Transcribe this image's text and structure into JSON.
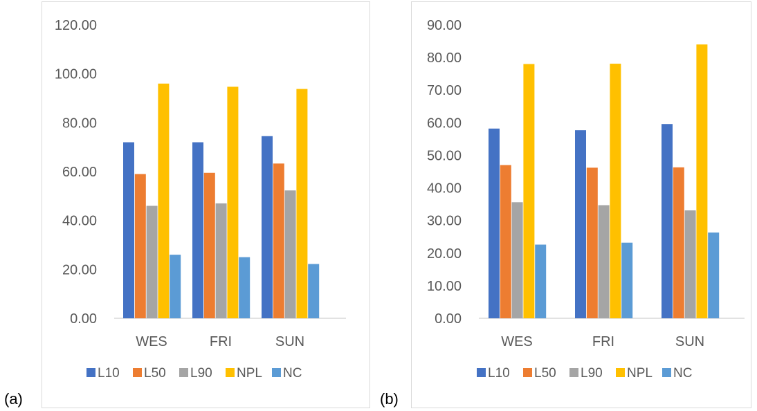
{
  "panel_labels": [
    "(a)",
    "(b)"
  ],
  "colors": {
    "L10": "#4472C4",
    "L50": "#ED7D31",
    "L90": "#A5A5A5",
    "NPL": "#FFC000",
    "NC": "#5B9BD5",
    "axis": "#D9D9D9",
    "text": "#595959"
  },
  "chart_data": [
    {
      "type": "bar",
      "categories": [
        "WES",
        "FRI",
        "SUN"
      ],
      "ylim": [
        0,
        120
      ],
      "yticks": [
        "0.00",
        "20.00",
        "40.00",
        "60.00",
        "80.00",
        "100.00",
        "120.00"
      ],
      "series": [
        {
          "name": "L10",
          "values": [
            72.0,
            72.0,
            74.5
          ]
        },
        {
          "name": "L50",
          "values": [
            59.0,
            59.5,
            63.3
          ]
        },
        {
          "name": "L90",
          "values": [
            46.0,
            47.0,
            52.3
          ]
        },
        {
          "name": "NPL",
          "values": [
            96.0,
            94.7,
            93.8
          ]
        },
        {
          "name": "NC",
          "values": [
            26.0,
            25.0,
            22.2
          ]
        }
      ],
      "legend": "bottom",
      "grid": false
    },
    {
      "type": "bar",
      "categories": [
        "WES",
        "FRI",
        "SUN"
      ],
      "ylim": [
        0,
        90
      ],
      "yticks": [
        "0.00",
        "10.00",
        "20.00",
        "30.00",
        "40.00",
        "50.00",
        "60.00",
        "70.00",
        "80.00",
        "90.00"
      ],
      "series": [
        {
          "name": "L10",
          "values": [
            58.2,
            57.7,
            59.6
          ]
        },
        {
          "name": "L50",
          "values": [
            47.0,
            46.2,
            46.3
          ]
        },
        {
          "name": "L90",
          "values": [
            35.6,
            34.7,
            33.1
          ]
        },
        {
          "name": "NPL",
          "values": [
            78.0,
            78.1,
            84.0
          ]
        },
        {
          "name": "NC",
          "values": [
            22.6,
            23.2,
            26.3
          ]
        }
      ],
      "legend": "bottom",
      "grid": false
    }
  ]
}
